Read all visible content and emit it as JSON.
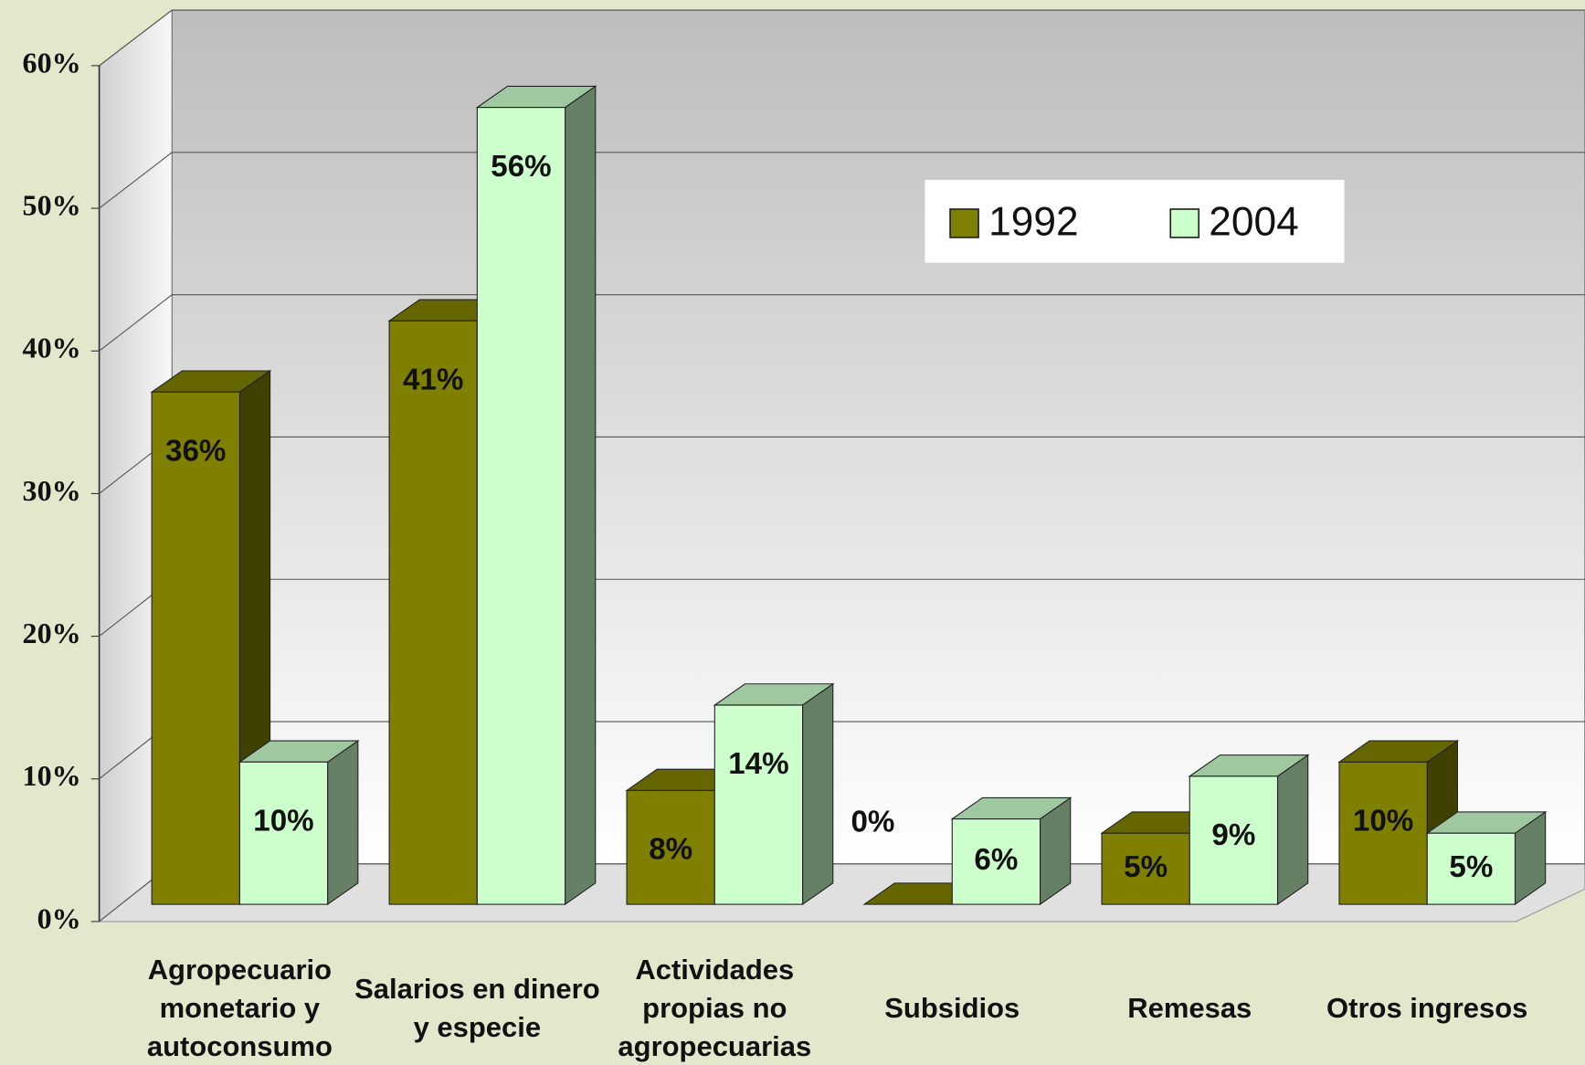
{
  "chart_data": {
    "type": "bar3d",
    "categories": [
      "Agropecuario monetario y autoconsumo",
      "Salarios en dinero y especie",
      "Actividades propias no agropecuarias",
      "Subsidios",
      "Remesas",
      "Otros ingresos"
    ],
    "series": [
      {
        "name": "1992",
        "color": "#808000",
        "values": [
          36,
          41,
          8,
          0,
          5,
          10
        ],
        "value_labels": [
          "36%",
          "41%",
          "8%",
          "0%",
          "5%",
          "10%"
        ]
      },
      {
        "name": "2004",
        "color": "#ccffcc",
        "values": [
          10,
          56,
          14,
          6,
          9,
          5
        ],
        "value_labels": [
          "10%",
          "56%",
          "14%",
          "6%",
          "9%",
          "5%"
        ]
      }
    ],
    "ylim": [
      0,
      60
    ],
    "yticks": [
      {
        "value": 0,
        "label": "0%"
      },
      {
        "value": 10,
        "label": "10%"
      },
      {
        "value": 20,
        "label": "20%"
      },
      {
        "value": 30,
        "label": "30%"
      },
      {
        "value": 40,
        "label": "40%"
      },
      {
        "value": 50,
        "label": "50%"
      },
      {
        "value": 60,
        "label": "60%"
      }
    ],
    "grid": true,
    "legend": "top-right"
  }
}
